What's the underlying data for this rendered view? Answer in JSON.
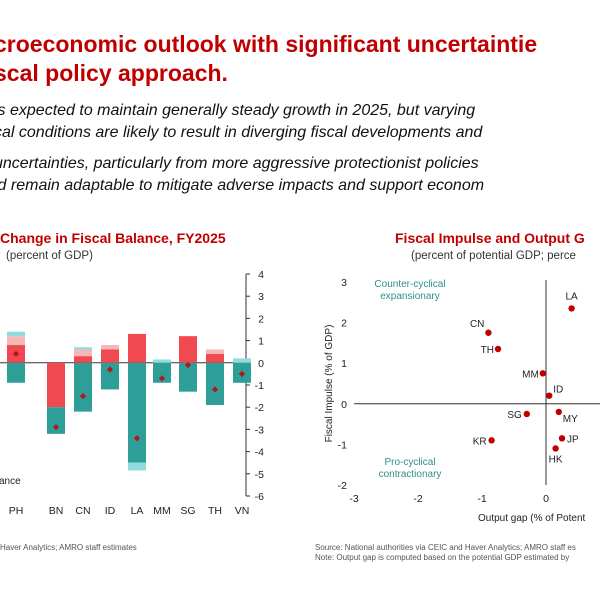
{
  "page": {
    "title_line1": "croeconomic outlook with significant uncertaintie",
    "title_line2": "scal policy approach.",
    "sub_line1": "is expected to maintain generally steady growth in 2025, but varying",
    "sub_line2": "cal conditions are likely to result in diverging fiscal developments and",
    "sub_line3": "uncertainties, particularly from more aggressive protectionist policies",
    "sub_line4": "ld remain adaptable to mitigate adverse impacts and support econom"
  },
  "left_chart": {
    "title": "Change in Fiscal Balance, FY2025",
    "subtitle": "(percent of GDP)",
    "legend_fragment": "ance",
    "source": "Haver Analytics; AMRO staff estimates"
  },
  "right_chart": {
    "title": "Fiscal Impulse and Output G",
    "subtitle": "(percent of potential GDP; perce",
    "quadrant_top": [
      "Counter-cyclical",
      "expansionary"
    ],
    "quadrant_bottom": [
      "Pro-cyclical",
      "contractionary"
    ],
    "xlabel": "Output gap (% of Potent",
    "ylabel": "Fiscal Impulse  (% of GDP)",
    "source_line1": "Source: National authorities via CEIC and Haver Analytics; AMRO staff es",
    "source_line2": "Note: Output gap is computed based on the potential GDP estimated by"
  },
  "colors": {
    "accent": "#c00000",
    "revenue": "#f0494f",
    "expenditure": "#2e9e99",
    "light_red": "#f6b7b9",
    "light_teal": "#8fdcdc",
    "marker": "#b5161c"
  },
  "chart_data": [
    {
      "type": "bar",
      "title": "Change in Fiscal Balance, FY2025",
      "subtitle": "(percent of GDP)",
      "categories": [
        "PH",
        "BN",
        "CN",
        "ID",
        "LA",
        "MM",
        "SG",
        "TH",
        "VN"
      ],
      "series": [
        {
          "values": [
            0.8,
            -2.0,
            0.3,
            0.6,
            1.3,
            0.0,
            1.2,
            0.4,
            0.0
          ]
        },
        {
          "values": [
            -0.9,
            -1.2,
            -2.2,
            -1.2,
            -4.5,
            -0.9,
            -1.3,
            -1.9,
            -0.9
          ]
        },
        {
          "values": [
            0.4,
            0.0,
            0.3,
            0.2,
            0.0,
            0.0,
            0.0,
            0.2,
            0.0
          ]
        },
        {
          "values": [
            0.2,
            0.0,
            0.1,
            0.0,
            0.0,
            0.15,
            0.0,
            0.0,
            0.2
          ]
        },
        {
          "values": [
            0.0,
            0.0,
            0.0,
            0.0,
            -0.35,
            0.0,
            0.0,
            0.0,
            0.0
          ]
        }
      ],
      "markers": [
        0.4,
        -2.9,
        -1.5,
        -0.3,
        -3.4,
        -0.7,
        -0.1,
        -1.2,
        -0.5
      ],
      "ylim": [
        -6,
        4
      ],
      "yticks": [
        4,
        3,
        2,
        1,
        0,
        -1,
        -2,
        -3,
        -4,
        -5,
        -6
      ],
      "y_axis_side": "right"
    },
    {
      "type": "scatter",
      "title": "Fiscal Impulse and Output G",
      "subtitle": "(percent of potential GDP; perce",
      "xlabel": "Output gap (% of Potent",
      "ylabel": "Fiscal Impulse  (% of GDP)",
      "xlim": [
        -3,
        1
      ],
      "ylim": [
        -2,
        3
      ],
      "xticks": [
        -3,
        -2,
        -1,
        0
      ],
      "yticks": [
        3,
        2,
        1,
        0,
        -1,
        -2
      ],
      "points": [
        {
          "label": "LA",
          "x": 0.4,
          "y": 2.35
        },
        {
          "label": "CN",
          "x": -0.9,
          "y": 1.75
        },
        {
          "label": "TH",
          "x": -0.75,
          "y": 1.35
        },
        {
          "label": "MM",
          "x": -0.05,
          "y": 0.75
        },
        {
          "label": "ID",
          "x": 0.05,
          "y": 0.2
        },
        {
          "label": "SG",
          "x": -0.3,
          "y": -0.25
        },
        {
          "label": "MY",
          "x": 0.2,
          "y": -0.2
        },
        {
          "label": "KR",
          "x": -0.85,
          "y": -0.9
        },
        {
          "label": "JP",
          "x": 0.25,
          "y": -0.85
        },
        {
          "label": "HK",
          "x": 0.15,
          "y": -1.1
        }
      ]
    }
  ]
}
